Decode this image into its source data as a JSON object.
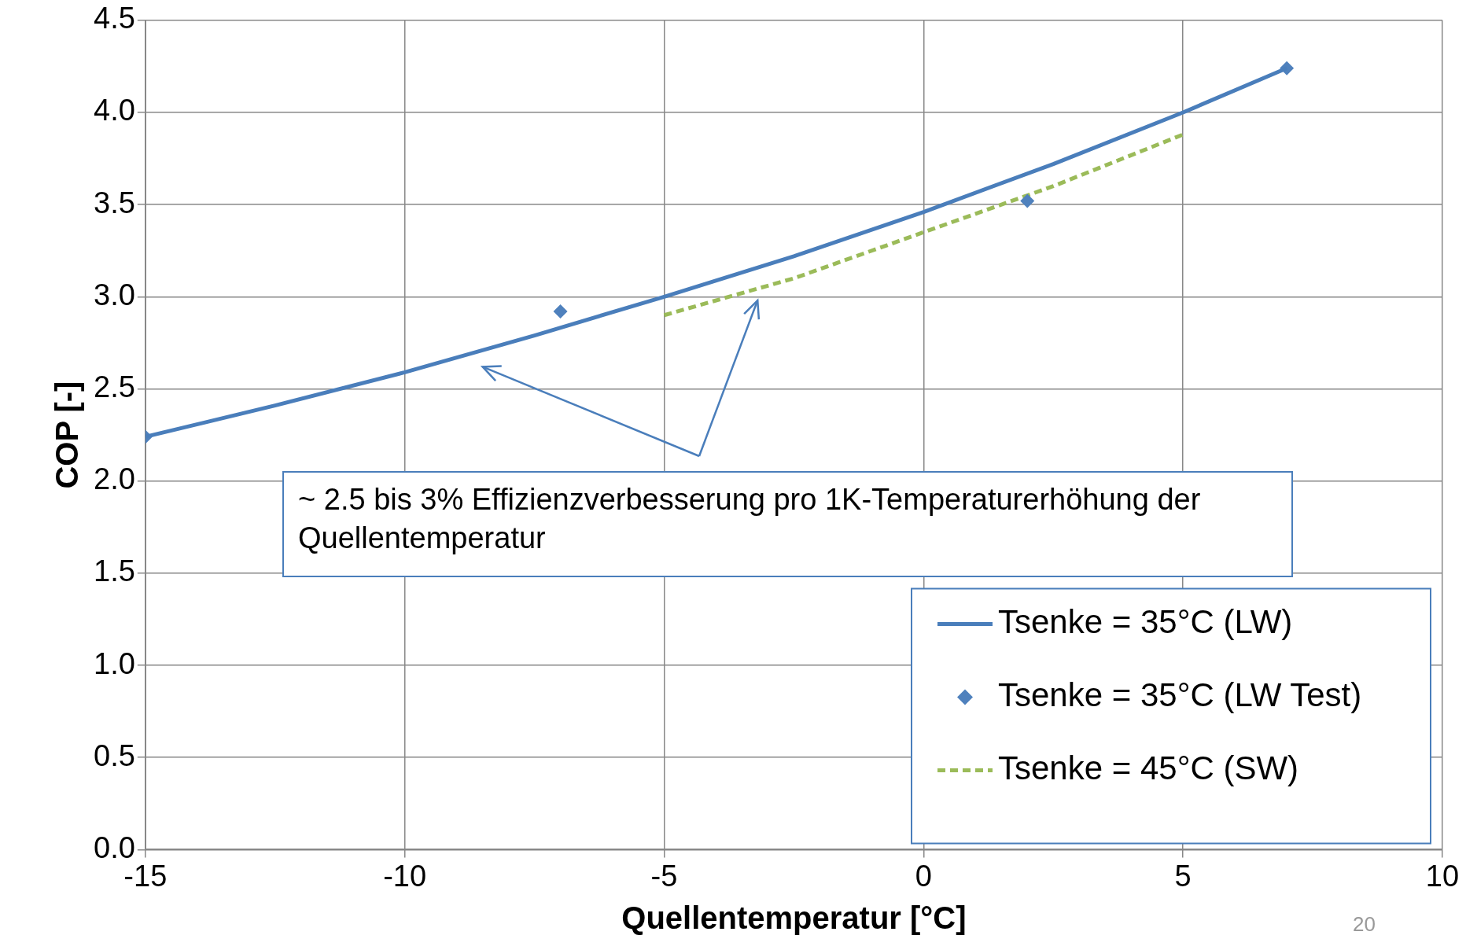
{
  "chart_data": {
    "type": "line",
    "xlabel": "Quellentemperatur [°C]",
    "ylabel": "COP [-]",
    "xlim": [
      -15,
      10
    ],
    "xticks": [
      -15,
      -10,
      -5,
      0,
      5,
      10
    ],
    "ylim": [
      0,
      4.5
    ],
    "yticks": [
      {
        "value": 0,
        "label": "0.0"
      },
      {
        "value": 0.5,
        "label": "0.5"
      },
      {
        "value": 1,
        "label": "1.0"
      },
      {
        "value": 1.5,
        "label": "1.5"
      },
      {
        "value": 2,
        "label": "2.0"
      },
      {
        "value": 2.5,
        "label": "2.5"
      },
      {
        "value": 3,
        "label": "3.0"
      },
      {
        "value": 3.5,
        "label": "3.5"
      },
      {
        "value": 4,
        "label": "4.0"
      },
      {
        "value": 4.5,
        "label": "4.5"
      }
    ],
    "grid": true,
    "legend": "bottom right",
    "series": [
      {
        "name": "Tsenke = 35°C (LW)",
        "color": "#4a7ebb",
        "line_style": "solid",
        "marker": "none",
        "x": [
          -15,
          -12.5,
          -10,
          -7.5,
          -5,
          -2.5,
          0,
          2.5,
          5,
          7
        ],
        "values": [
          2.24,
          2.41,
          2.59,
          2.79,
          3.0,
          3.22,
          3.46,
          3.72,
          4.0,
          4.24
        ]
      },
      {
        "name": "Tsenke = 35°C (LW Test)",
        "type": "scatter",
        "color": "#4f81bd",
        "marker": "diamond",
        "x": [
          -15,
          -7,
          2,
          7
        ],
        "values": [
          2.24,
          2.92,
          3.52,
          4.24
        ]
      },
      {
        "name": "Tsenke = 45°C (SW)",
        "color": "#9bbb59",
        "line_style": "dashed",
        "marker": "none",
        "x": [
          -5,
          -2.5,
          0,
          2.5,
          5
        ],
        "values": [
          2.9,
          3.1,
          3.35,
          3.6,
          3.88
        ]
      }
    ],
    "annotations": [
      "~ 2.5 bis 3% Effizienzverbesserung pro 1K-Temperaturerhöhung der Quellentemperatur",
      "20"
    ]
  }
}
